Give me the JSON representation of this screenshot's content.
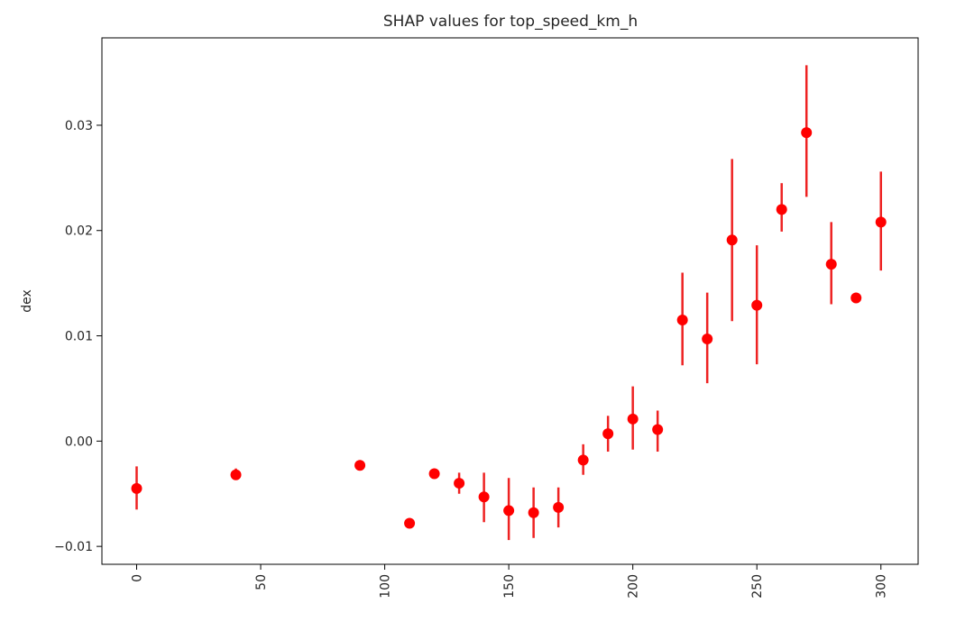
{
  "chart_data": {
    "type": "scatter",
    "title": "SHAP values for top_speed_km_h",
    "xlabel": "",
    "ylabel": "dex",
    "xlim": [
      -14,
      315
    ],
    "ylim": [
      -0.0117,
      0.0383
    ],
    "x_ticks": [
      0,
      50,
      100,
      150,
      200,
      250,
      300
    ],
    "x_tick_labels": [
      "0",
      "50",
      "100",
      "150",
      "200",
      "250",
      "300"
    ],
    "x_tick_rotation": "vertical",
    "y_ticks": [
      -0.01,
      0.0,
      0.01,
      0.02,
      0.03
    ],
    "y_tick_labels": [
      "−0.01",
      "0.00",
      "0.01",
      "0.02",
      "0.03"
    ],
    "grid": false,
    "legend": "none",
    "marker_color": "#ff0000",
    "errorbar_color": "#ee2222",
    "points": [
      {
        "x": 0,
        "y": -0.0045,
        "low": -0.0065,
        "high": -0.0024
      },
      {
        "x": 40,
        "y": -0.0032,
        "low": -0.0036,
        "high": -0.0026
      },
      {
        "x": 90,
        "y": -0.0023,
        "low": -0.0024,
        "high": -0.0022
      },
      {
        "x": 110,
        "y": -0.0078,
        "low": -0.0079,
        "high": -0.0077
      },
      {
        "x": 120,
        "y": -0.0031,
        "low": -0.0032,
        "high": -0.003
      },
      {
        "x": 130,
        "y": -0.004,
        "low": -0.005,
        "high": -0.003
      },
      {
        "x": 140,
        "y": -0.0053,
        "low": -0.0077,
        "high": -0.003
      },
      {
        "x": 150,
        "y": -0.0066,
        "low": -0.0094,
        "high": -0.0035
      },
      {
        "x": 160,
        "y": -0.0068,
        "low": -0.0092,
        "high": -0.0044
      },
      {
        "x": 170,
        "y": -0.0063,
        "low": -0.0082,
        "high": -0.0044
      },
      {
        "x": 180,
        "y": -0.0018,
        "low": -0.0032,
        "high": -0.0003
      },
      {
        "x": 190,
        "y": 0.0007,
        "low": -0.001,
        "high": 0.0024
      },
      {
        "x": 200,
        "y": 0.0021,
        "low": -0.0008,
        "high": 0.0052
      },
      {
        "x": 210,
        "y": 0.0011,
        "low": -0.001,
        "high": 0.0029
      },
      {
        "x": 220,
        "y": 0.0115,
        "low": 0.0072,
        "high": 0.016
      },
      {
        "x": 230,
        "y": 0.0097,
        "low": 0.0055,
        "high": 0.0141
      },
      {
        "x": 240,
        "y": 0.0191,
        "low": 0.0114,
        "high": 0.0268
      },
      {
        "x": 250,
        "y": 0.0129,
        "low": 0.0073,
        "high": 0.0186
      },
      {
        "x": 260,
        "y": 0.022,
        "low": 0.0199,
        "high": 0.0245
      },
      {
        "x": 270,
        "y": 0.0293,
        "low": 0.0232,
        "high": 0.0357
      },
      {
        "x": 280,
        "y": 0.0168,
        "low": 0.013,
        "high": 0.0208
      },
      {
        "x": 290,
        "y": 0.0136,
        "low": 0.0135,
        "high": 0.0137
      },
      {
        "x": 300,
        "y": 0.0208,
        "low": 0.0162,
        "high": 0.0256
      }
    ]
  }
}
